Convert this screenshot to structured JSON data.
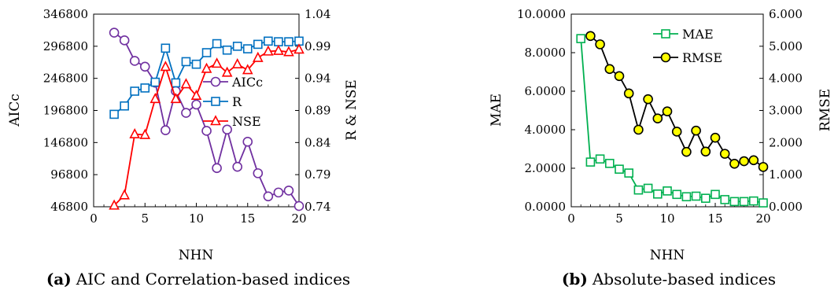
{
  "chart_data": [
    {
      "type": "line",
      "caption_label": "(a)",
      "caption_text": "AIC and Correlation-based indices",
      "xlabel": "NHN",
      "ylabel_left": "AICc",
      "ylabel_right": "R & NSE",
      "xlim": [
        0,
        20
      ],
      "xticks": [
        "0",
        "5",
        "10",
        "15",
        "20"
      ],
      "ylim_left": [
        46800,
        346800
      ],
      "yticks_left": [
        "46800",
        "96800",
        "146800",
        "196800",
        "246800",
        "296800",
        "346800"
      ],
      "ylim_right": [
        0.74,
        1.04
      ],
      "yticks_right": [
        "0.74",
        "0.79",
        "0.84",
        "0.89",
        "0.94",
        "0.99",
        "1.04"
      ],
      "grid": false,
      "legend_position": "center-right",
      "series": [
        {
          "name": "AICc",
          "axis": "left",
          "color": "#7030a0",
          "marker": "circle",
          "x": [
            2,
            3,
            4,
            5,
            6,
            7,
            8,
            9,
            10,
            11,
            12,
            13,
            14,
            15,
            16,
            17,
            18,
            19,
            20
          ],
          "y": [
            318000,
            306000,
            274000,
            265000,
            240000,
            166000,
            227000,
            193000,
            206000,
            165000,
            107000,
            167000,
            109000,
            148000,
            99000,
            63000,
            69000,
            72000,
            48000
          ]
        },
        {
          "name": "R",
          "axis": "right",
          "color": "#0070c0",
          "marker": "square",
          "x": [
            2,
            3,
            4,
            5,
            6,
            7,
            8,
            9,
            10,
            11,
            12,
            13,
            14,
            15,
            16,
            17,
            18,
            19,
            20
          ],
          "y": [
            0.884,
            0.897,
            0.92,
            0.925,
            0.934,
            0.987,
            0.933,
            0.966,
            0.962,
            0.98,
            0.994,
            0.984,
            0.99,
            0.986,
            0.993,
            0.998,
            0.997,
            0.997,
            0.998
          ]
        },
        {
          "name": "NSE",
          "axis": "right",
          "color": "#ff0000",
          "marker": "triangle",
          "x": [
            2,
            3,
            4,
            5,
            6,
            7,
            8,
            9,
            10,
            11,
            12,
            13,
            14,
            15,
            16,
            17,
            18,
            19,
            20
          ],
          "y": [
            0.742,
            0.758,
            0.853,
            0.852,
            0.908,
            0.958,
            0.908,
            0.931,
            0.913,
            0.955,
            0.963,
            0.949,
            0.962,
            0.953,
            0.972,
            0.982,
            0.983,
            0.981,
            0.985
          ]
        }
      ]
    },
    {
      "type": "line",
      "caption_label": "(b)",
      "caption_text": "Absolute-based indices",
      "xlabel": "NHN",
      "ylabel_left": "MAE",
      "ylabel_right": "RMSE",
      "xlim": [
        0,
        20
      ],
      "xticks": [
        "0",
        "5",
        "10",
        "15",
        "20"
      ],
      "ylim_left": [
        0,
        10
      ],
      "yticks_left": [
        "0.0000",
        "2.0000",
        "4.0000",
        "6.0000",
        "8.0000",
        "10.0000"
      ],
      "ylim_right": [
        0,
        6
      ],
      "yticks_right": [
        "0.000",
        "1.000",
        "2.000",
        "3.000",
        "4.000",
        "5.000",
        "6.000"
      ],
      "grid": false,
      "legend_position": "top-right",
      "series": [
        {
          "name": "MAE",
          "axis": "left",
          "color": "#00b050",
          "marker": "square",
          "x": [
            1,
            2,
            3,
            4,
            5,
            6,
            7,
            8,
            9,
            10,
            11,
            12,
            13,
            14,
            15,
            16,
            17,
            18,
            19,
            20
          ],
          "y": [
            8.73,
            2.32,
            2.48,
            2.25,
            1.95,
            1.75,
            0.87,
            0.96,
            0.66,
            0.82,
            0.64,
            0.52,
            0.55,
            0.44,
            0.64,
            0.37,
            0.27,
            0.27,
            0.3,
            0.2
          ]
        },
        {
          "name": "RMSE",
          "axis": "right",
          "color": "#ffff00",
          "marker": "circle",
          "x": [
            2,
            3,
            4,
            5,
            6,
            7,
            8,
            9,
            10,
            11,
            12,
            13,
            14,
            15,
            16,
            17,
            18,
            19,
            20
          ],
          "y": [
            5.32,
            5.06,
            4.29,
            4.07,
            3.53,
            2.4,
            3.35,
            2.75,
            2.97,
            2.34,
            1.71,
            2.37,
            1.72,
            2.15,
            1.65,
            1.34,
            1.42,
            1.45,
            1.24
          ]
        }
      ]
    }
  ]
}
